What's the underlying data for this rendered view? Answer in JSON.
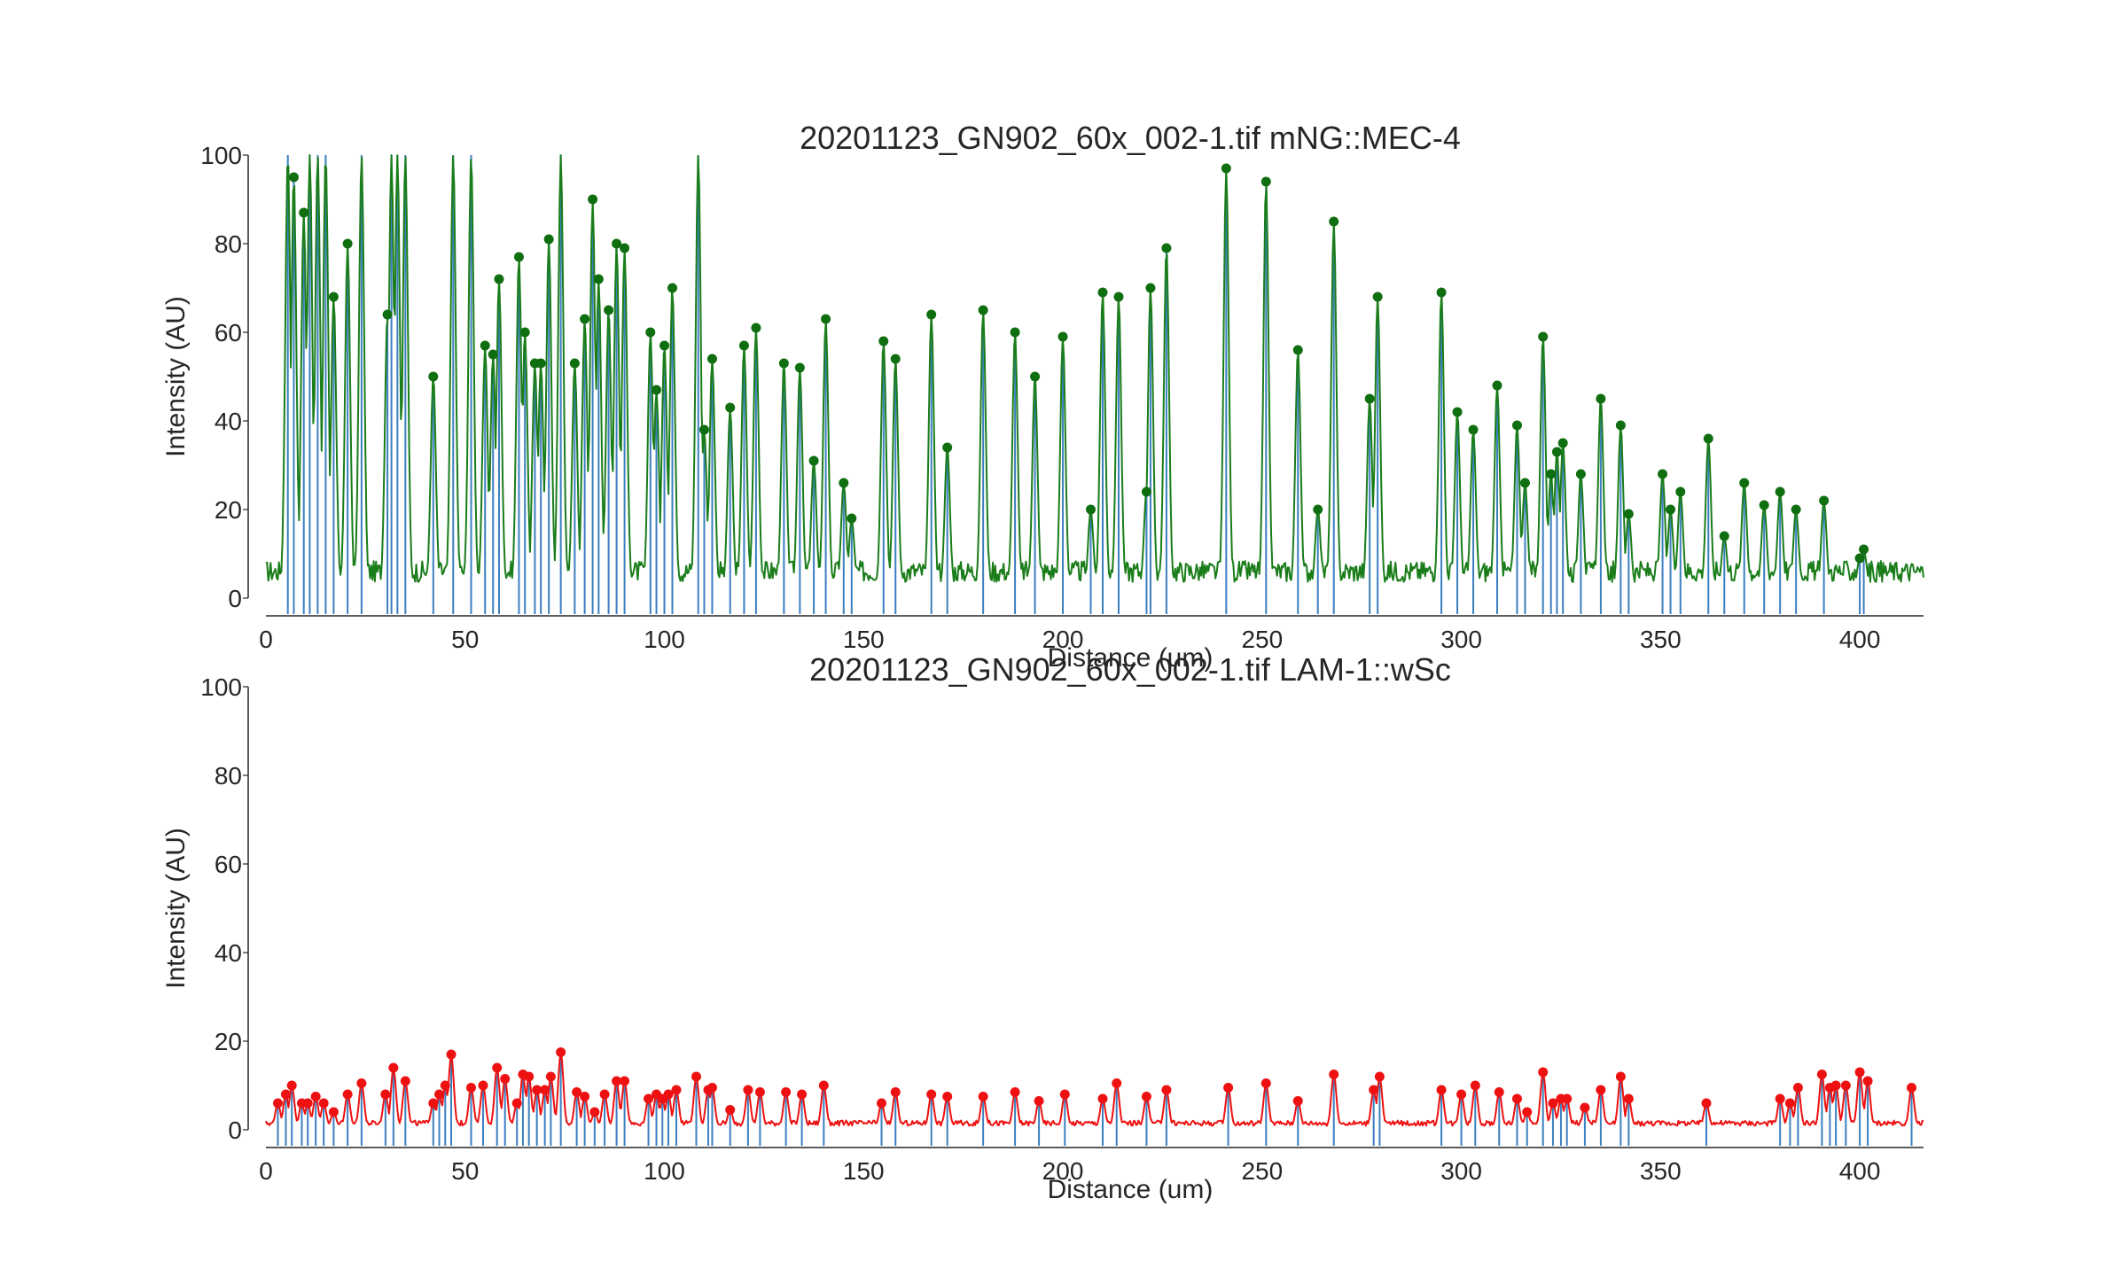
{
  "chart_data": [
    {
      "type": "line",
      "title": "20201123_GN902_60x_002-1.tif mNG::MEC-4",
      "xlabel": "Distance (um)",
      "ylabel": "Intensity (AU)",
      "xlim": [
        0,
        416
      ],
      "ylim": [
        0,
        100
      ],
      "xticks": [
        "0",
        "50",
        "100",
        "150",
        "200",
        "250",
        "300",
        "350",
        "400"
      ],
      "yticks": [
        "0",
        "20",
        "40",
        "60",
        "80",
        "100"
      ],
      "grid": false,
      "legend": "none",
      "line_color": "#1a7d1a",
      "marker_color": "#0f6e0f",
      "stem_color": "#3b7fc0",
      "series_baseline": 6,
      "peaks": [
        [
          5.5,
          100
        ],
        [
          7,
          95
        ],
        [
          9.5,
          87
        ],
        [
          11,
          100
        ],
        [
          13,
          100
        ],
        [
          15,
          100
        ],
        [
          17,
          68
        ],
        [
          20.5,
          80
        ],
        [
          24,
          100
        ],
        [
          30.5,
          64
        ],
        [
          31.5,
          100
        ],
        [
          33,
          100
        ],
        [
          35,
          100
        ],
        [
          42,
          50
        ],
        [
          47,
          100
        ],
        [
          51.5,
          100
        ],
        [
          55,
          57
        ],
        [
          57,
          55
        ],
        [
          58.5,
          72
        ],
        [
          63.5,
          77
        ],
        [
          65,
          60
        ],
        [
          67.5,
          53
        ],
        [
          69,
          53
        ],
        [
          71,
          81
        ],
        [
          74,
          100
        ],
        [
          77.5,
          53
        ],
        [
          80,
          63
        ],
        [
          82,
          90
        ],
        [
          83.5,
          72
        ],
        [
          86,
          65
        ],
        [
          88,
          80
        ],
        [
          90,
          79
        ],
        [
          96.5,
          60
        ],
        [
          98,
          47
        ],
        [
          100,
          57
        ],
        [
          102,
          70
        ],
        [
          108.5,
          100
        ],
        [
          110,
          38
        ],
        [
          112,
          54
        ],
        [
          116.5,
          43
        ],
        [
          120,
          57
        ],
        [
          123,
          61
        ],
        [
          130,
          53
        ],
        [
          134,
          52
        ],
        [
          137.5,
          31
        ],
        [
          140.5,
          63
        ],
        [
          145,
          26
        ],
        [
          147,
          18
        ],
        [
          155,
          58
        ],
        [
          158,
          54
        ],
        [
          167,
          64
        ],
        [
          171,
          34
        ],
        [
          180,
          65
        ],
        [
          188,
          60
        ],
        [
          193,
          50
        ],
        [
          200,
          59
        ],
        [
          207,
          20
        ],
        [
          210,
          69
        ],
        [
          214,
          68
        ],
        [
          221,
          24
        ],
        [
          222,
          70
        ],
        [
          226,
          79
        ],
        [
          241,
          97
        ],
        [
          251,
          94
        ],
        [
          259,
          56
        ],
        [
          264,
          20
        ],
        [
          268,
          85
        ],
        [
          277,
          45
        ],
        [
          279,
          68
        ],
        [
          295,
          69
        ],
        [
          299,
          42
        ],
        [
          303,
          38
        ],
        [
          309,
          48
        ],
        [
          314,
          39
        ],
        [
          316,
          26
        ],
        [
          320.5,
          59
        ],
        [
          322.5,
          28
        ],
        [
          324,
          33
        ],
        [
          325.5,
          35
        ],
        [
          330,
          28
        ],
        [
          335,
          45
        ],
        [
          340,
          39
        ],
        [
          342,
          19
        ],
        [
          350.5,
          28
        ],
        [
          352.5,
          20
        ],
        [
          355,
          24
        ],
        [
          362,
          36
        ],
        [
          366,
          14
        ],
        [
          371,
          26
        ],
        [
          376,
          21
        ],
        [
          380,
          24
        ],
        [
          384,
          20
        ],
        [
          391,
          22
        ],
        [
          400,
          9
        ],
        [
          401,
          11
        ]
      ]
    },
    {
      "type": "line",
      "title": "20201123_GN902_60x_002-1.tif LAM-1::wSc",
      "xlabel": "Distance (um)",
      "ylabel": "Intensity (AU)",
      "xlim": [
        0,
        416
      ],
      "ylim": [
        0,
        100
      ],
      "xticks": [
        "0",
        "50",
        "100",
        "150",
        "200",
        "250",
        "300",
        "350",
        "400"
      ],
      "yticks": [
        "0",
        "20",
        "40",
        "60",
        "80",
        "100"
      ],
      "grid": false,
      "legend": "none",
      "line_color": "#ee1111",
      "marker_color": "#ee1111",
      "stem_color": "#3b7fc0",
      "series_baseline": 1.5,
      "peaks": [
        [
          3,
          6
        ],
        [
          5,
          8
        ],
        [
          6.5,
          10
        ],
        [
          9,
          6
        ],
        [
          10.5,
          6
        ],
        [
          12.5,
          7.5
        ],
        [
          14.5,
          6
        ],
        [
          17,
          4
        ],
        [
          20.5,
          8
        ],
        [
          24,
          10.5
        ],
        [
          30,
          8
        ],
        [
          32,
          14
        ],
        [
          35,
          11
        ],
        [
          42,
          6
        ],
        [
          43.5,
          8
        ],
        [
          45,
          10
        ],
        [
          46.5,
          17
        ],
        [
          51.5,
          9.5
        ],
        [
          54.5,
          10
        ],
        [
          58,
          14
        ],
        [
          60,
          11.5
        ],
        [
          63,
          6
        ],
        [
          64.5,
          12.5
        ],
        [
          66,
          12
        ],
        [
          68,
          9
        ],
        [
          70,
          9
        ],
        [
          71.5,
          12
        ],
        [
          74,
          17.5
        ],
        [
          78,
          8.5
        ],
        [
          80,
          7.5
        ],
        [
          82.5,
          4
        ],
        [
          85,
          8
        ],
        [
          88,
          11
        ],
        [
          90,
          11
        ],
        [
          96,
          7
        ],
        [
          98,
          8
        ],
        [
          99.5,
          7
        ],
        [
          101,
          8
        ],
        [
          103,
          9
        ],
        [
          108,
          12
        ],
        [
          111,
          9
        ],
        [
          112,
          9.5
        ],
        [
          116.5,
          4.5
        ],
        [
          121,
          9
        ],
        [
          124,
          8.5
        ],
        [
          130.5,
          8.5
        ],
        [
          134.5,
          8
        ],
        [
          140,
          10
        ],
        [
          154.5,
          6
        ],
        [
          158,
          8.5
        ],
        [
          167,
          8
        ],
        [
          171,
          7.5
        ],
        [
          180,
          7.5
        ],
        [
          188,
          8.5
        ],
        [
          194,
          6.5
        ],
        [
          200.5,
          8
        ],
        [
          210,
          7
        ],
        [
          213.5,
          10.5
        ],
        [
          221,
          7.5
        ],
        [
          226,
          9
        ],
        [
          241.5,
          9.5
        ],
        [
          251,
          10.5
        ],
        [
          259,
          6.5
        ],
        [
          268,
          12.5
        ],
        [
          278,
          9
        ],
        [
          279.5,
          12
        ],
        [
          295,
          9
        ],
        [
          300,
          8
        ],
        [
          303.5,
          10
        ],
        [
          309.5,
          8.5
        ],
        [
          314,
          7
        ],
        [
          316.5,
          4
        ],
        [
          320.5,
          13
        ],
        [
          323,
          6
        ],
        [
          325,
          7
        ],
        [
          326.5,
          7
        ],
        [
          331,
          5
        ],
        [
          335,
          9
        ],
        [
          340,
          12
        ],
        [
          342,
          7
        ],
        [
          361.5,
          6
        ],
        [
          380,
          7
        ],
        [
          382.5,
          6
        ],
        [
          384.5,
          9.5
        ],
        [
          390.5,
          12.5
        ],
        [
          392.5,
          9.5
        ],
        [
          394,
          10
        ],
        [
          396.5,
          10
        ],
        [
          400,
          13
        ],
        [
          402,
          11
        ],
        [
          413,
          9.5
        ]
      ]
    }
  ]
}
